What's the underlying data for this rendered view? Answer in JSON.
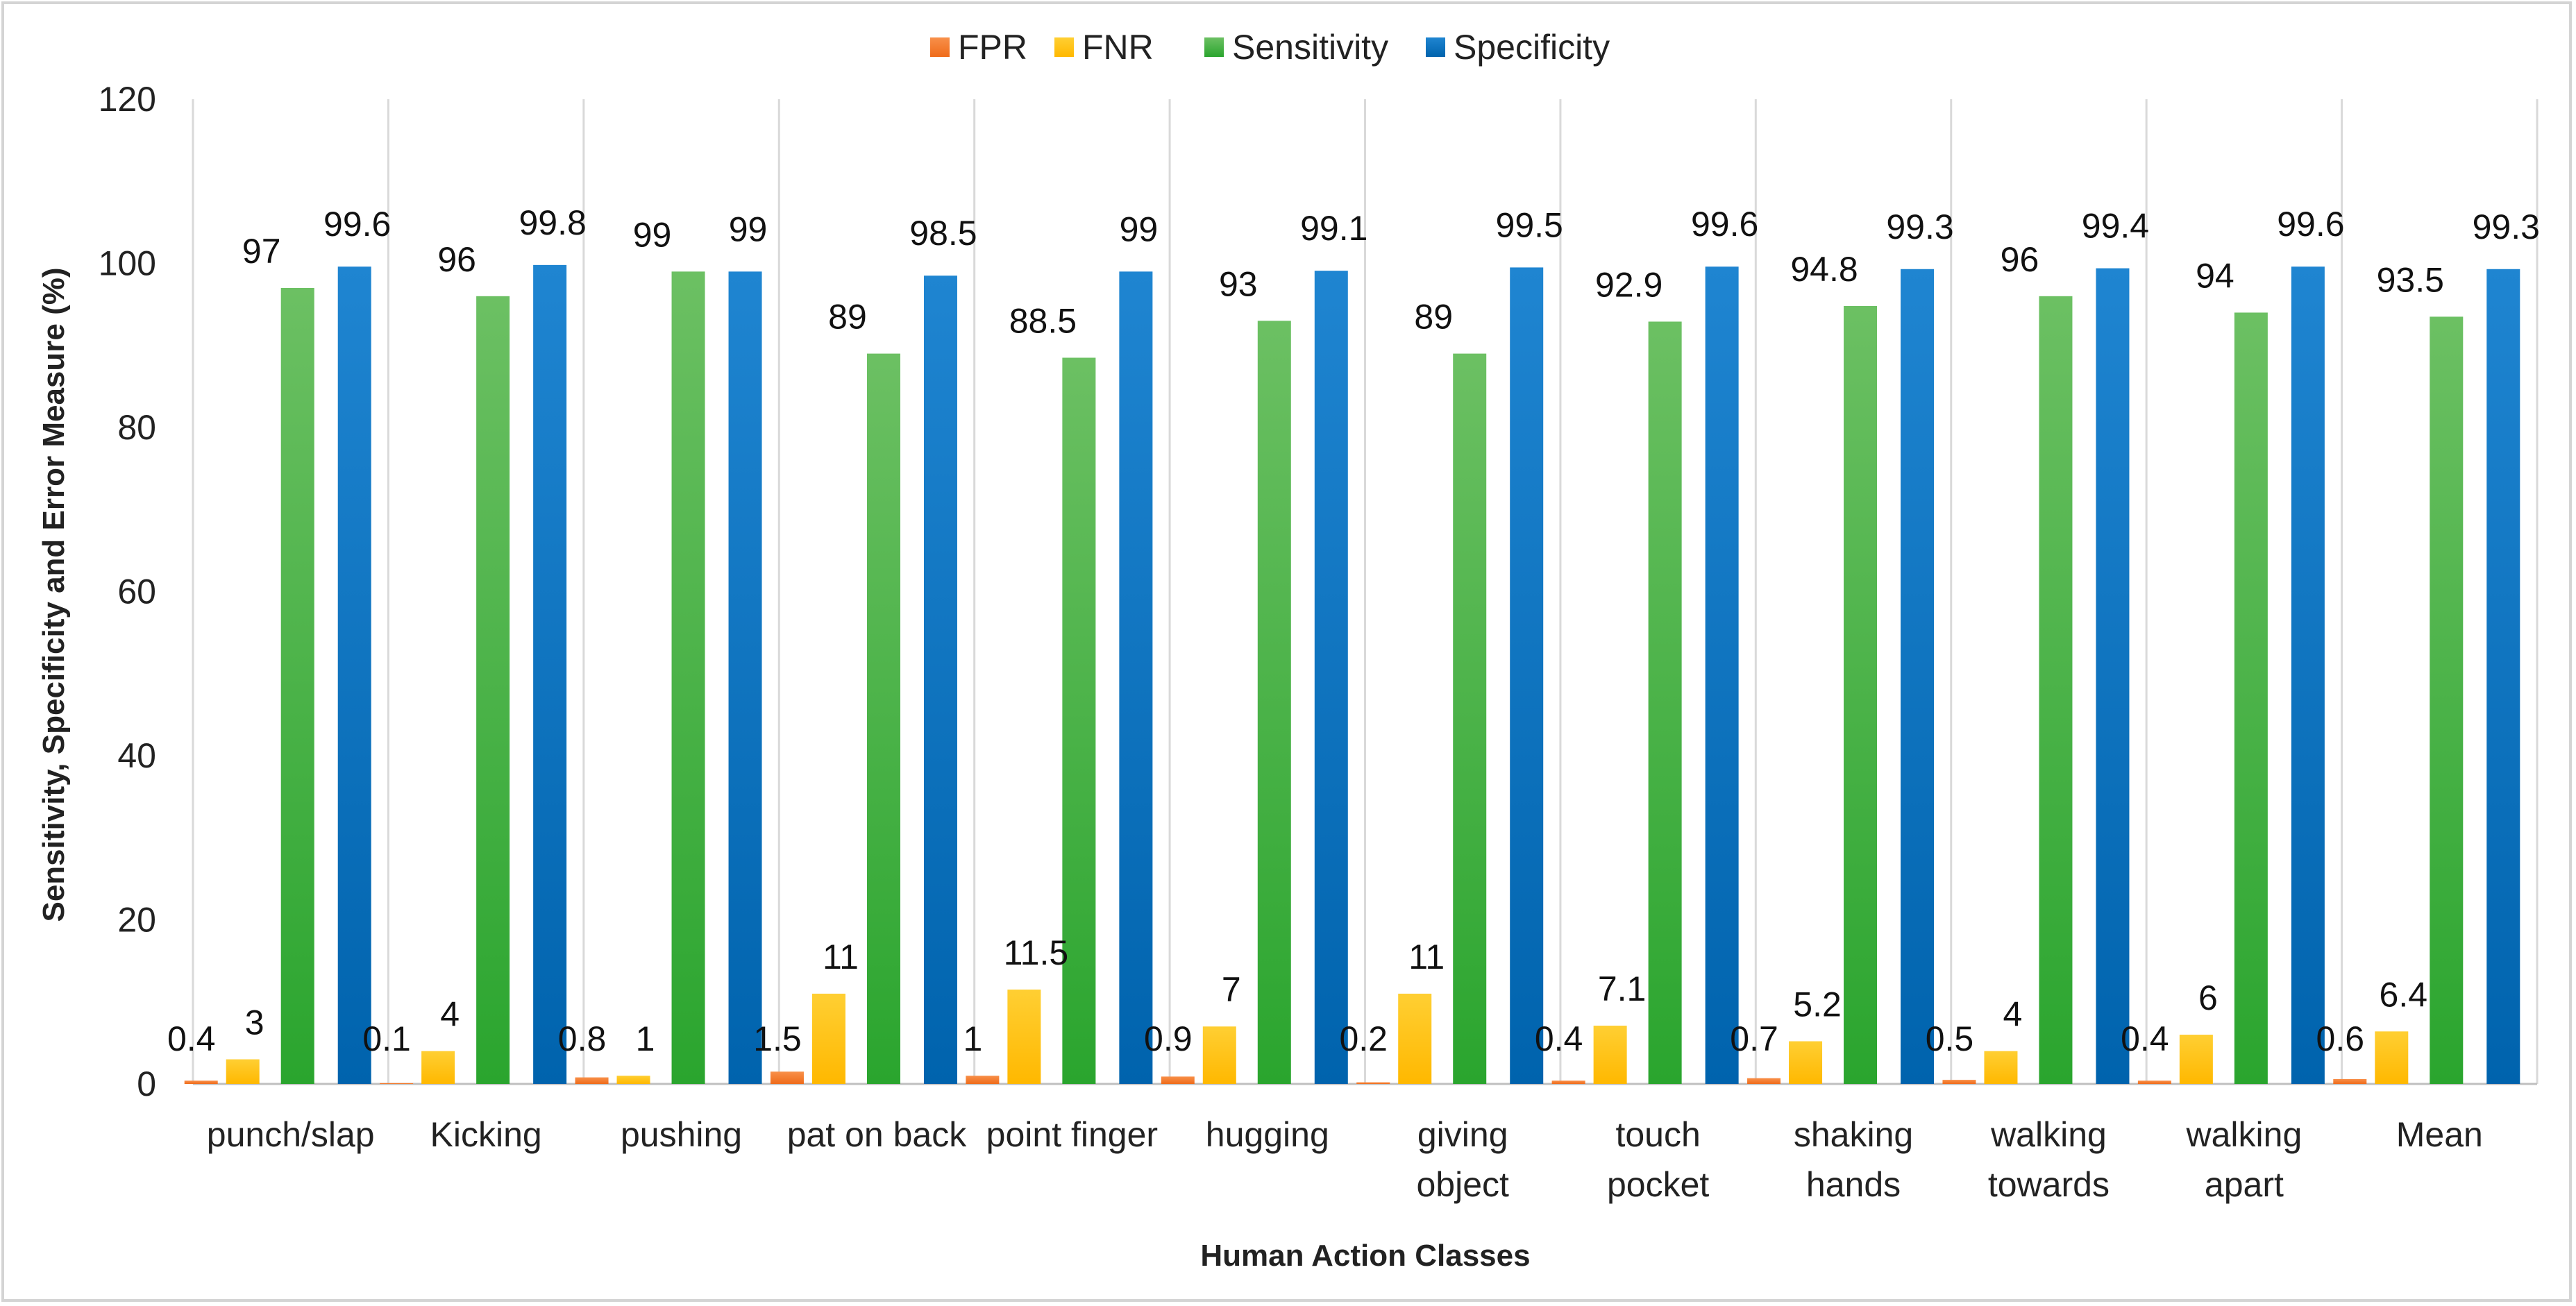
{
  "chart_data": {
    "type": "bar",
    "title": "",
    "xlabel": "Human Action Classes",
    "ylabel": "Sensitivity, Specificity and Error Measure (%)",
    "ylim": [
      0,
      120
    ],
    "yticks": [
      0,
      20,
      40,
      60,
      80,
      100,
      120
    ],
    "grid": "vertical separators between categories",
    "legend_position": "top-center",
    "categories": [
      [
        "punch/slap"
      ],
      [
        "Kicking"
      ],
      [
        "pushing"
      ],
      [
        "pat on back"
      ],
      [
        "point finger"
      ],
      [
        "hugging"
      ],
      [
        "giving",
        "object"
      ],
      [
        "touch",
        "pocket"
      ],
      [
        "shaking",
        "hands"
      ],
      [
        "walking",
        "towards"
      ],
      [
        "walking",
        "apart"
      ],
      [
        "Mean"
      ]
    ],
    "series": [
      {
        "name": "FPR",
        "color": "#f47b2a",
        "values": [
          0.4,
          0.1,
          0.8,
          1.5,
          1,
          0.9,
          0.2,
          0.4,
          0.7,
          0.5,
          0.4,
          0.6
        ],
        "labels": [
          "0.4",
          "0.1",
          "0.8",
          "1.5",
          "1",
          "0.9",
          "0.2",
          "0.4",
          "0.7",
          "0.5",
          "0.4",
          "0.6"
        ]
      },
      {
        "name": "FNR",
        "color": "#ffc000",
        "values": [
          3,
          4,
          1,
          11,
          11.5,
          7,
          11,
          7.1,
          5.2,
          4,
          6,
          6.4
        ],
        "labels": [
          "3",
          "4",
          "1",
          "11",
          "11.5",
          "7",
          "11",
          "7.1",
          "5.2",
          "4",
          "6",
          "6.4"
        ]
      },
      {
        "name": "Sensitivity",
        "color": "#3fae49",
        "values": [
          97,
          96,
          99,
          89,
          88.5,
          93,
          89,
          92.9,
          94.8,
          96,
          94,
          93.5
        ],
        "labels": [
          "97",
          "96",
          "99",
          "89",
          "88.5",
          "93",
          "89",
          "92.9",
          "94.8",
          "96",
          "94",
          "93.5"
        ]
      },
      {
        "name": "Specificity",
        "color": "#0070c0",
        "values": [
          99.6,
          99.8,
          99,
          98.5,
          99,
          99.1,
          99.5,
          99.6,
          99.3,
          99.4,
          99.6,
          99.3
        ],
        "labels": [
          "99.6",
          "99.8",
          "99",
          "98.5",
          "99",
          "99.1",
          "99.5",
          "99.6",
          "99.3",
          "99.4",
          "99.6",
          "99.3"
        ]
      }
    ]
  }
}
